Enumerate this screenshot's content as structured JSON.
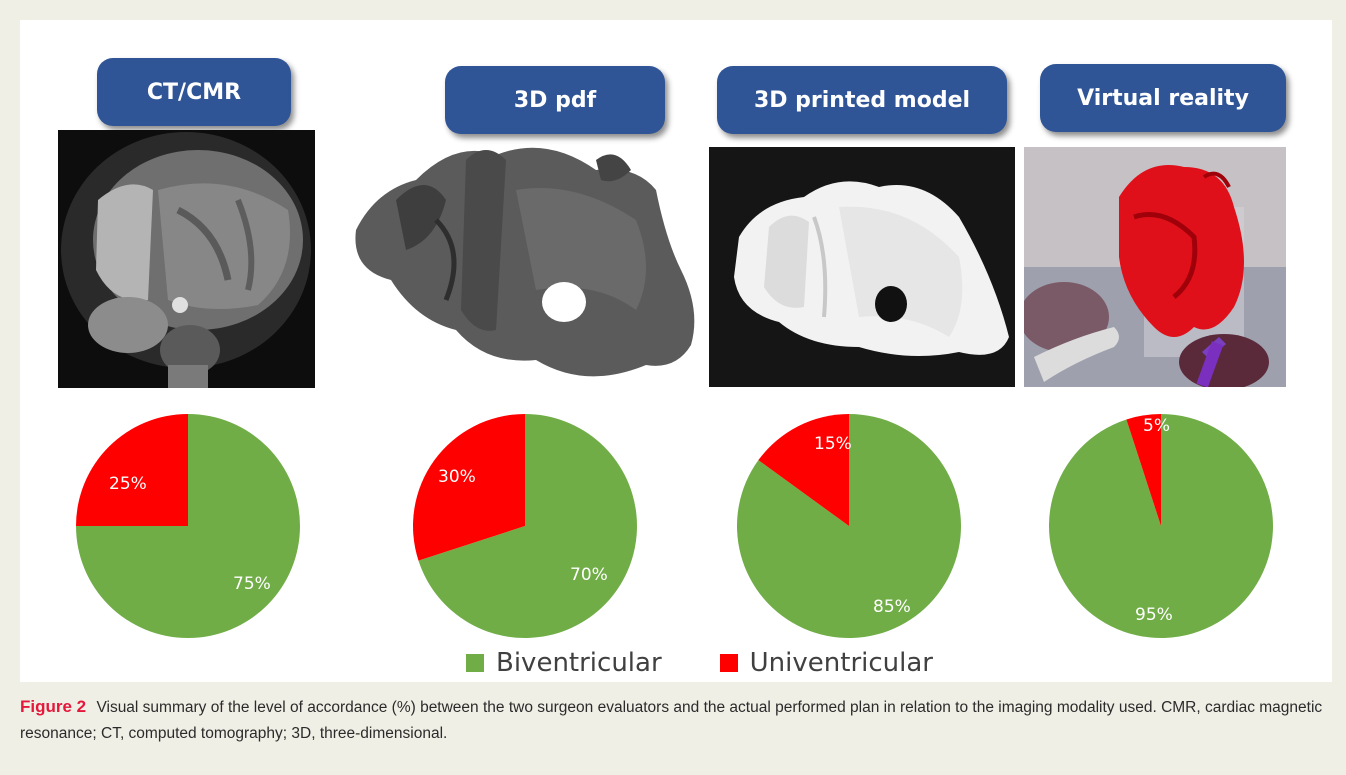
{
  "modalities": [
    "CT/CMR",
    "3D pdf",
    "3D printed model",
    "Virtual reality"
  ],
  "colors": {
    "biventricular": "#70ad47",
    "univentricular": "#ff0000",
    "label_bg": "#2f5597"
  },
  "chart_data": [
    {
      "type": "pie",
      "title": "CT/CMR",
      "slices": [
        {
          "label": "Univentricular",
          "value": 25,
          "text": "25%"
        },
        {
          "label": "Biventricular",
          "value": 75,
          "text": "75%"
        }
      ]
    },
    {
      "type": "pie",
      "title": "3D pdf",
      "slices": [
        {
          "label": "Univentricular",
          "value": 30,
          "text": "30%"
        },
        {
          "label": "Biventricular",
          "value": 70,
          "text": "70%"
        }
      ]
    },
    {
      "type": "pie",
      "title": "3D printed model",
      "slices": [
        {
          "label": "Univentricular",
          "value": 15,
          "text": "15%"
        },
        {
          "label": "Biventricular",
          "value": 85,
          "text": "85%"
        }
      ]
    },
    {
      "type": "pie",
      "title": "Virtual reality",
      "slices": [
        {
          "label": "Univentricular",
          "value": 5,
          "text": "5%"
        },
        {
          "label": "Biventricular",
          "value": 95,
          "text": "95%"
        }
      ]
    }
  ],
  "legend": [
    {
      "label": "Biventricular"
    },
    {
      "label": "Univentricular"
    }
  ],
  "caption": {
    "figure_label": "Figure 2",
    "text": "Visual summary of the level of accordance (%) between the two surgeon evaluators and the actual performed plan in relation to the imaging modality used. CMR, cardiac magnetic resonance; CT, computed tomography; 3D, three-dimensional."
  }
}
